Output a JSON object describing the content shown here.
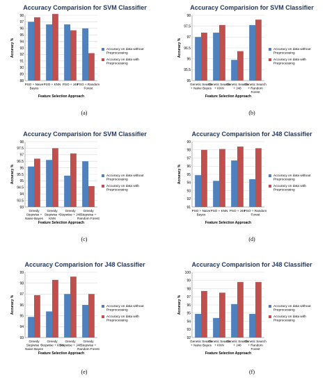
{
  "colors": {
    "without": "#4f81bd",
    "with": "#c0504d",
    "title": "#1f3864",
    "grid": "#d9d9d9",
    "axis": "#808080"
  },
  "chart_data": [
    {
      "type": "bar",
      "caption": "(a)",
      "title": "Accuracy Comparision for SVM Classifier",
      "xlabel": "Feature Selection Approach",
      "ylabel": "Accuracy %",
      "ylim": [
        88,
        98
      ],
      "yticks": [
        88,
        89,
        90,
        91,
        92,
        93,
        94,
        95,
        96,
        97,
        98
      ],
      "categories": [
        [
          "PSO + Naive",
          "Bayes"
        ],
        [
          "PSO + KNN"
        ],
        [
          "PSO + J48"
        ],
        [
          "PSO + Random",
          "Forest"
        ]
      ],
      "series": [
        {
          "name": "Accuracy on data without Preprocessing",
          "legend_lines": [
            "Accuracy on data without",
            "Preprocessing"
          ],
          "values": [
            97.0,
            96.6,
            96.6,
            96.0
          ]
        },
        {
          "name": "Accuracy on data with Preprocessing",
          "legend_lines": [
            "Accuracy on data with",
            "Preprocessing"
          ],
          "values": [
            97.7,
            98.2,
            95.7,
            92.2
          ]
        }
      ],
      "legend": "right"
    },
    {
      "type": "bar",
      "caption": "(b)",
      "title": "Accuracy Comparision for SVM Classifier",
      "xlabel": "Feature Selection Approach",
      "ylabel": "Accuracy %",
      "ylim": [
        95,
        98
      ],
      "yticks": [
        95,
        95.5,
        96,
        96.5,
        97,
        97.5,
        98
      ],
      "categories": [
        [
          "Genetic Search",
          "+ Naive Bayes"
        ],
        [
          "Genetic Search",
          "+ KNN"
        ],
        [
          "Genetic Search",
          "+ J48"
        ],
        [
          "Genetic Search",
          "+ Random",
          "Forest"
        ]
      ],
      "series": [
        {
          "name": "Accuracy on data without Preprocessing",
          "legend_lines": [
            "Accuracy on data without",
            "Preprocessing"
          ],
          "values": [
            97.0,
            97.2,
            95.95,
            97.55
          ]
        },
        {
          "name": "Accuracy on data with Preprocessing",
          "legend_lines": [
            "Accuracy on data with",
            "Preprocessing"
          ],
          "values": [
            97.2,
            97.55,
            96.35,
            97.8
          ]
        }
      ],
      "legend": "right"
    },
    {
      "type": "bar",
      "caption": "(c)",
      "title": "Accuracy Comparision for SVM Classifier",
      "xlabel": "Feature Selection Approach",
      "ylabel": "Accuracy %",
      "ylim": [
        93,
        98
      ],
      "yticks": [
        93,
        93.5,
        94,
        94.5,
        95,
        95.5,
        96,
        96.5,
        97,
        97.5,
        98
      ],
      "categories": [
        [
          "Greedy",
          "Stepwise +",
          "Naive Bayes"
        ],
        [
          "Greedy",
          "Stepwise +",
          "KNN"
        ],
        [
          "Greedy",
          "Stepwise + J48"
        ],
        [
          "Greedy",
          "Stepwise +",
          "Random Forest"
        ]
      ],
      "series": [
        {
          "name": "Accuracy on data without Preprocessing",
          "legend_lines": [
            "Accuracy on data without",
            "Preprocessing"
          ],
          "values": [
            96.1,
            96.6,
            95.4,
            96.5
          ]
        },
        {
          "name": "Accuracy on data with Preprocessing",
          "legend_lines": [
            "Accuracy on data with",
            "Preprocessing"
          ],
          "values": [
            96.7,
            97.5,
            97.1,
            94.6
          ]
        }
      ],
      "legend": "right"
    },
    {
      "type": "bar",
      "caption": "(d)",
      "title": "Accuracy Comparision for J48 Classifier",
      "xlabel": "Feature Selection Approach",
      "ylabel": "Accuracy %",
      "ylim": [
        91,
        99
      ],
      "yticks": [
        91,
        92,
        93,
        94,
        95,
        96,
        97,
        98,
        99
      ],
      "categories": [
        [
          "PSO + Naive",
          "Bayes"
        ],
        [
          "PSO + KNN"
        ],
        [
          "PSO + J48"
        ],
        [
          "PSO + Random",
          "Forest"
        ]
      ],
      "series": [
        {
          "name": "Accuracy on data without Preprocessing",
          "legend_lines": [
            "Accuracy on data without",
            "Preprocessing"
          ],
          "values": [
            94.9,
            94.2,
            96.7,
            94.4
          ]
        },
        {
          "name": "Accuracy on data with Preprocessing",
          "legend_lines": [
            "Accuracy on data with",
            "Preprocessing"
          ],
          "values": [
            98.0,
            98.1,
            98.4,
            98.2
          ]
        }
      ],
      "legend": "right"
    },
    {
      "type": "bar",
      "caption": "(e)",
      "title": "Accuracy Comparision for J48 Classifier",
      "xlabel": "Feature Selection Approach",
      "ylabel": "Accuracy %",
      "ylim": [
        93,
        99
      ],
      "yticks": [
        93,
        94,
        95,
        96,
        97,
        98,
        99
      ],
      "categories": [
        [
          "Greedy",
          "Stepwise +",
          "Naive Bayes"
        ],
        [
          "Greedy",
          "Stepwise + KNN"
        ],
        [
          "Greedy",
          "Stepwise + J48"
        ],
        [
          "Greedy",
          "Stepwise +",
          "Random Forest"
        ]
      ],
      "series": [
        {
          "name": "Accuracy on data without Preprocessing",
          "legend_lines": [
            "Accuracy on data without",
            "Preprocessing"
          ],
          "values": [
            94.9,
            95.4,
            97.0,
            96.0
          ]
        },
        {
          "name": "Accuracy on data with Preprocessing",
          "legend_lines": [
            "Accuracy on data with",
            "Preprocessing"
          ],
          "values": [
            96.9,
            98.3,
            98.6,
            97.0
          ]
        }
      ],
      "legend": "right"
    },
    {
      "type": "bar",
      "caption": "(f)",
      "title": "Accuracy Comparision for J48 Classifier",
      "xlabel": "Feature Selection Approach",
      "ylabel": "Accuracy %",
      "ylim": [
        92,
        100
      ],
      "yticks": [
        92,
        93,
        94,
        95,
        96,
        97,
        98,
        99,
        100
      ],
      "categories": [
        [
          "Genetic Search",
          "+ Naive Bayes"
        ],
        [
          "Genetic Search",
          "+ KNN"
        ],
        [
          "Genetic Search",
          "+ J48"
        ],
        [
          "Genetic Search",
          "+ Random",
          "Forest"
        ]
      ],
      "series": [
        {
          "name": "Accuracy on data without Preprocessing",
          "legend_lines": [
            "Accuracy on data without",
            "Preprocessing"
          ],
          "values": [
            94.9,
            94.4,
            96.1,
            94.9
          ]
        },
        {
          "name": "Accuracy on data with Preprocessing",
          "legend_lines": [
            "Accuracy on data with",
            "Preprocessing"
          ],
          "values": [
            97.7,
            97.5,
            98.8,
            98.8
          ]
        }
      ],
      "legend": "right"
    }
  ]
}
